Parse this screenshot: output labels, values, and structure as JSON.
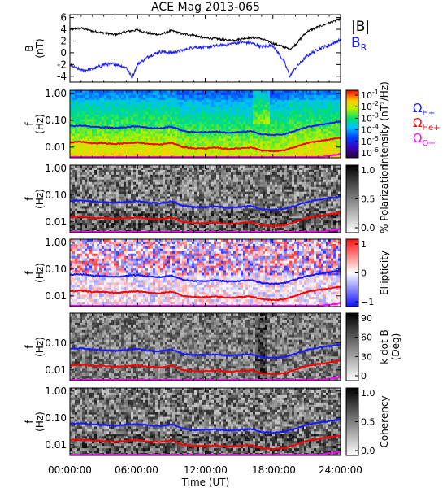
{
  "figure": {
    "title": "ACE Mag 2013-065",
    "xlabel": "Time (UT)",
    "x_tick_labels": [
      "00:00:00",
      "06:00:00",
      "12:00:00",
      "18:00:00",
      "24:00:00"
    ]
  },
  "colors": {
    "bmag": "#000000",
    "br": "#1a1aff",
    "h_plus": "#1a1aff",
    "he_plus": "#ff0000",
    "o_plus": "#ff00ff",
    "axis": "#000000"
  },
  "chart_data": [
    {
      "type": "line",
      "ylabel": "B",
      "yunit": "(nT)",
      "x_unit_hours": [
        0,
        24
      ],
      "ylim": [
        -5,
        6.5
      ],
      "y_ticks": [
        "6",
        "4",
        "2",
        "0",
        "-2",
        "-4"
      ],
      "legend": {
        "placement": "right",
        "entries": [
          {
            "label": "|B|",
            "color": "#000000"
          },
          {
            "label": "B",
            "sub": "R",
            "color": "#1a1aff"
          }
        ]
      },
      "series": [
        {
          "name": "|B|",
          "color": "#000000",
          "x": [
            0,
            1,
            2,
            3,
            4,
            5,
            6,
            7,
            8,
            9,
            10,
            11,
            12,
            13,
            14,
            15,
            16,
            17,
            18,
            19,
            19.5,
            20,
            21,
            22,
            23,
            24
          ],
          "y": [
            4.0,
            4.2,
            3.7,
            3.4,
            3.1,
            3.6,
            3.9,
            3.3,
            3.1,
            3.8,
            3.2,
            3.0,
            2.5,
            2.4,
            2.1,
            2.3,
            2.6,
            2.4,
            1.6,
            1.0,
            0.6,
            1.4,
            3.6,
            4.4,
            5.1,
            5.8
          ]
        },
        {
          "name": "B_R",
          "color": "#1a1aff",
          "x": [
            0,
            1,
            2,
            3,
            4,
            5,
            5.5,
            6,
            7,
            8,
            9,
            10,
            11,
            12,
            13,
            14,
            15,
            16,
            17,
            18,
            19,
            19.5,
            20,
            21,
            22,
            23,
            24
          ],
          "y": [
            -2.1,
            -3.0,
            -2.8,
            -2.0,
            -1.9,
            -2.5,
            -4.2,
            -2.0,
            -0.6,
            0.2,
            0.0,
            0.4,
            1.0,
            0.9,
            1.2,
            1.4,
            1.8,
            1.7,
            1.0,
            1.3,
            -1.5,
            -4.0,
            -2.6,
            -0.6,
            0.6,
            1.3,
            2.2
          ]
        }
      ]
    },
    {
      "type": "heatmap",
      "ylabel": "f",
      "yunit": "(Hz)",
      "y_scale": "log",
      "ylim": [
        0.004,
        1.3
      ],
      "y_ticks": [
        "1.00",
        "0.10",
        "0.01"
      ],
      "colorbar": {
        "label": "Intensity (nT²/Hz)",
        "scale": "log",
        "palette": "rainbow",
        "tick_labels": [
          {
            "base": "10",
            "exp": "-1"
          },
          {
            "base": "10",
            "exp": "-2"
          },
          {
            "base": "10",
            "exp": "-3"
          },
          {
            "base": "10",
            "exp": "-4"
          },
          {
            "base": "10",
            "exp": "-5"
          },
          {
            "base": "10",
            "exp": "-6"
          }
        ]
      },
      "legend": {
        "placement": "right",
        "entries": [
          {
            "label": "Ω",
            "sub": "H+",
            "color": "#1a1aff"
          },
          {
            "label": "Ω",
            "sub": "He+",
            "color": "#ff0000"
          },
          {
            "label": "Ω",
            "sub": "O+",
            "color": "#ff00ff"
          }
        ]
      }
    },
    {
      "type": "heatmap",
      "ylabel": "f",
      "yunit": "(Hz)",
      "y_scale": "log",
      "ylim": [
        0.004,
        1.3
      ],
      "y_ticks": [
        "1.00",
        "0.10",
        "0.01"
      ],
      "colorbar": {
        "label": "% Polarization",
        "palette": "gray",
        "range": [
          0,
          1.0
        ],
        "tick_labels": [
          {
            "base": "1.0"
          },
          {
            "base": "0.5"
          },
          {
            "base": "0.0"
          }
        ]
      }
    },
    {
      "type": "heatmap",
      "ylabel": "f",
      "yunit": "(Hz)",
      "y_scale": "log",
      "ylim": [
        0.004,
        1.3
      ],
      "y_ticks": [
        "1.00",
        "0.10",
        "0.01"
      ],
      "colorbar": {
        "label": "Ellipticity",
        "palette": "bwr",
        "range": [
          -1,
          1
        ],
        "tick_labels": [
          {
            "base": "1"
          },
          {
            "base": "0"
          },
          {
            "base": "−1"
          }
        ]
      }
    },
    {
      "type": "heatmap",
      "ylabel": "f",
      "yunit": "(Hz)",
      "y_scale": "log",
      "ylim": [
        0.004,
        1.3
      ],
      "y_ticks": [
        "0.10",
        "0.01"
      ],
      "colorbar": {
        "label": "k dot B",
        "label2": "(Deg)",
        "palette": "gray",
        "range": [
          0,
          90
        ],
        "tick_labels": [
          {
            "base": "90"
          },
          {
            "base": "60"
          },
          {
            "base": "30"
          },
          {
            "base": "0"
          }
        ]
      }
    },
    {
      "type": "heatmap",
      "ylabel": "f",
      "yunit": "(Hz)",
      "y_scale": "log",
      "ylim": [
        0.004,
        1.3
      ],
      "y_ticks": [
        "1.00",
        "0.10",
        "0.01"
      ],
      "colorbar": {
        "label": "Coherency",
        "palette": "gray",
        "range": [
          0,
          1.0
        ],
        "tick_labels": [
          {
            "base": "1.0"
          },
          {
            "base": "0.5"
          },
          {
            "base": "0.0"
          }
        ]
      }
    }
  ],
  "gyrofrequency": {
    "x_hours": [
      0,
      1,
      2,
      3,
      4,
      5,
      6,
      7,
      8,
      9,
      10,
      11,
      12,
      13,
      14,
      15,
      16,
      17,
      18,
      19,
      20,
      21,
      22,
      23,
      24
    ],
    "h_plus_hz": [
      0.061,
      0.064,
      0.057,
      0.055,
      0.051,
      0.056,
      0.06,
      0.052,
      0.05,
      0.058,
      0.04,
      0.036,
      0.036,
      0.038,
      0.034,
      0.036,
      0.039,
      0.03,
      0.028,
      0.03,
      0.04,
      0.055,
      0.066,
      0.076,
      0.088
    ],
    "he_plus_hz": [
      0.015,
      0.016,
      0.014,
      0.014,
      0.013,
      0.014,
      0.015,
      0.013,
      0.0125,
      0.0145,
      0.01,
      0.009,
      0.009,
      0.0095,
      0.0085,
      0.009,
      0.0098,
      0.0075,
      0.007,
      0.0075,
      0.01,
      0.014,
      0.0165,
      0.019,
      0.022
    ],
    "o_plus_hz": [
      0.0038,
      0.004,
      0.0036,
      0.0034,
      0.0032,
      0.0035,
      0.0037,
      0.0033,
      0.0031,
      0.0036,
      0.0025,
      0.0022,
      0.0022,
      0.0024,
      0.0021,
      0.0022,
      0.0024,
      0.0019,
      0.0018,
      0.0019,
      0.0025,
      0.0034,
      0.0041,
      0.0047,
      0.0055
    ]
  }
}
